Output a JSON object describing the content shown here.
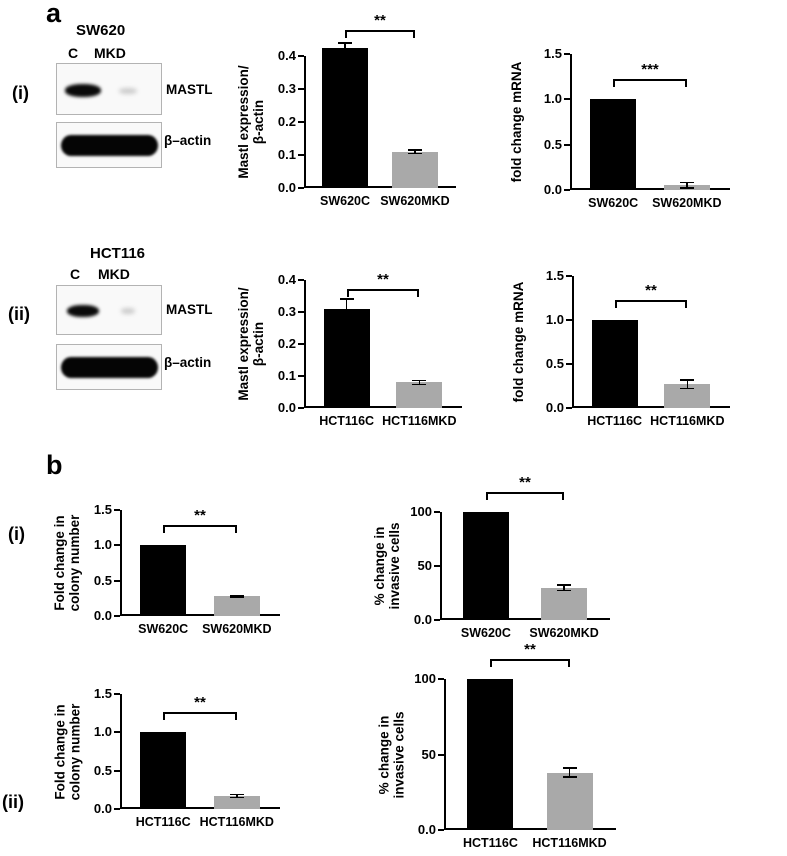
{
  "figure": {
    "panel_a_label": "a",
    "panel_b_label": "b",
    "panel_a_i": "(i)",
    "panel_a_ii": "(ii)",
    "panel_b_i": "(i)",
    "panel_b_ii": "(ii)"
  },
  "blots": {
    "sw620": {
      "title": "SW620",
      "lane_c": "C",
      "lane_mkd": "MKD",
      "mastl_label": "MASTL",
      "actin_label": "β–actin"
    },
    "hct116": {
      "title": "HCT116",
      "lane_c": "C",
      "lane_mkd": "MKD",
      "mastl_label": "MASTL",
      "actin_label": "β–actin"
    }
  },
  "chart_data": [
    {
      "panel": "a(i)",
      "type": "bar",
      "ylabel_lines": [
        "Mastl expression/",
        "β-actin"
      ],
      "ytick_labels": [
        "0.0",
        "0.1",
        "0.2",
        "0.3",
        "0.4"
      ],
      "ylim": [
        0,
        0.4
      ],
      "categories": [
        "SW620C",
        "SW620MKD"
      ],
      "values": [
        0.425,
        0.11
      ],
      "errors": [
        0.015,
        0.005
      ],
      "bar_colors": [
        "#000000",
        "#a9a9a9"
      ],
      "significance": "**"
    },
    {
      "panel": "a(i)",
      "type": "bar",
      "ylabel_lines": [
        "fold change mRNA"
      ],
      "ytick_labels": [
        "0.0",
        "0.5",
        "1.0",
        "1.5"
      ],
      "ylim": [
        0,
        1.5
      ],
      "categories": [
        "SW620C",
        "SW620MKD"
      ],
      "values": [
        1.0,
        0.05
      ],
      "errors": [
        0,
        0.03
      ],
      "bar_colors": [
        "#000000",
        "#a9a9a9"
      ],
      "significance": "***"
    },
    {
      "panel": "a(ii)",
      "type": "bar",
      "ylabel_lines": [
        "Mastl expression/",
        "β-actin"
      ],
      "ytick_labels": [
        "0.0",
        "0.1",
        "0.2",
        "0.3",
        "0.4"
      ],
      "ylim": [
        0,
        0.4
      ],
      "categories": [
        "HCT116C",
        "HCT116MKD"
      ],
      "values": [
        0.31,
        0.08
      ],
      "errors": [
        0.03,
        0.006
      ],
      "bar_colors": [
        "#000000",
        "#a9a9a9"
      ],
      "significance": "**"
    },
    {
      "panel": "a(ii)",
      "type": "bar",
      "ylabel_lines": [
        "fold change mRNA"
      ],
      "ytick_labels": [
        "0.0",
        "0.5",
        "1.0",
        "1.5"
      ],
      "ylim": [
        0,
        1.5
      ],
      "categories": [
        "HCT116C",
        "HCT116MKD"
      ],
      "values": [
        1.0,
        0.27
      ],
      "errors": [
        0,
        0.05
      ],
      "bar_colors": [
        "#000000",
        "#a9a9a9"
      ],
      "significance": "**"
    },
    {
      "panel": "b(i)",
      "type": "bar",
      "ylabel_lines": [
        "Fold change in",
        "colony number"
      ],
      "ytick_labels": [
        "0.0",
        "0.5",
        "1.0",
        "1.5"
      ],
      "ylim": [
        0,
        1.5
      ],
      "categories": [
        "SW620C",
        "SW620MKD"
      ],
      "values": [
        1.0,
        0.28
      ],
      "errors": [
        0,
        0.012
      ],
      "bar_colors": [
        "#000000",
        "#a9a9a9"
      ],
      "significance": "**"
    },
    {
      "panel": "b(i)",
      "type": "bar",
      "ylabel_lines": [
        "% change in",
        "invasive cells"
      ],
      "ytick_labels": [
        "0.0",
        "50",
        "100"
      ],
      "ylim": [
        0,
        100
      ],
      "categories": [
        "SW620C",
        "SW620MKD"
      ],
      "values": [
        100,
        30
      ],
      "errors": [
        0,
        2.5
      ],
      "bar_colors": [
        "#000000",
        "#a9a9a9"
      ],
      "significance": "**"
    },
    {
      "panel": "b(ii)",
      "type": "bar",
      "ylabel_lines": [
        "Fold change in",
        "colony number"
      ],
      "ytick_labels": [
        "0.0",
        "0.5",
        "1.0",
        "1.5"
      ],
      "ylim": [
        0,
        1.5
      ],
      "categories": [
        "HCT116C",
        "HCT116MKD"
      ],
      "values": [
        1.0,
        0.17
      ],
      "errors": [
        0,
        0.02
      ],
      "bar_colors": [
        "#000000",
        "#a9a9a9"
      ],
      "significance": "**"
    },
    {
      "panel": "b(ii)",
      "type": "bar",
      "ylabel_lines": [
        "% change in",
        "invasive cells"
      ],
      "ytick_labels": [
        "0.0",
        "50",
        "100"
      ],
      "ylim": [
        0,
        100
      ],
      "categories": [
        "HCT116C",
        "HCT116MKD"
      ],
      "values": [
        100,
        38
      ],
      "errors": [
        0,
        3
      ],
      "bar_colors": [
        "#000000",
        "#a9a9a9"
      ],
      "significance": "**"
    }
  ]
}
